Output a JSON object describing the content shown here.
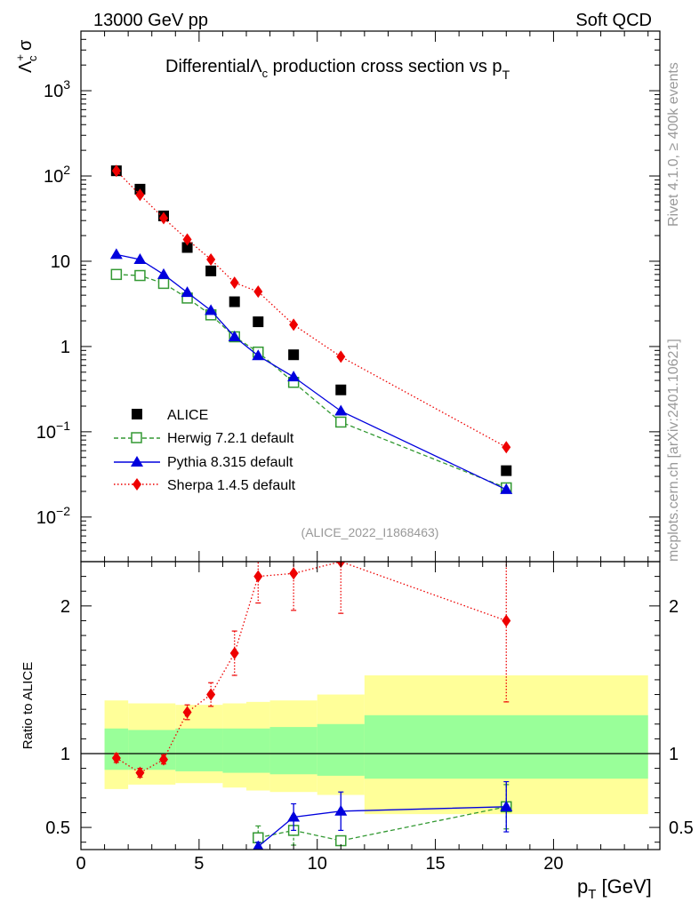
{
  "header": {
    "left": "13000 GeV pp",
    "right": "Soft QCD",
    "side_rivet": "Rivet 4.1.0, ≥ 400k events",
    "side_site": "mcplots.cern.ch [arXiv:2401.10621]",
    "analysis_id": "(ALICE_2022_I1868463)"
  },
  "colors": {
    "alice": "#000000",
    "herwig": "#339933",
    "pythia": "#0000dd",
    "sherpa": "#ee0000",
    "band_inner": "#99ff99",
    "band_outer": "#ffff99"
  },
  "legend": [
    {
      "label": "ALICE",
      "marker": "square-filled",
      "color": "#000000"
    },
    {
      "label": "Herwig 7.2.1 default",
      "marker": "square-open",
      "color": "#339933"
    },
    {
      "label": "Pythia 8.315 default",
      "marker": "triangle",
      "color": "#0000dd"
    },
    {
      "label": "Sherpa 1.4.5 default",
      "marker": "diamond",
      "color": "#ee0000"
    }
  ],
  "chart_data": [
    {
      "type": "scatter",
      "title_prefix": "Differential",
      "title_symbol": "Λ",
      "title_sub": "c",
      "title_suffix": " production cross section vs p",
      "title_suffix_sub": "T",
      "ylabel_symbol": "Λ",
      "ylabel_sup": "+",
      "ylabel_sub": "c",
      "ylabel_suffix": " σ",
      "yscale": "log",
      "xlim": [
        0,
        24.5
      ],
      "ylim": [
        0.003,
        5000
      ],
      "ytick_labels": [
        {
          "value": 0.01,
          "base": "10",
          "exp": "−2"
        },
        {
          "value": 0.1,
          "base": "10",
          "exp": "−1"
        },
        {
          "value": 1,
          "base": "1",
          "exp": ""
        },
        {
          "value": 10,
          "base": "10",
          "exp": ""
        },
        {
          "value": 100,
          "base": "10",
          "exp": "2"
        },
        {
          "value": 1000,
          "base": "10",
          "exp": "3"
        }
      ],
      "series": [
        {
          "name": "ALICE",
          "x": [
            1.5,
            2.5,
            3.5,
            4.5,
            5.5,
            6.5,
            7.5,
            9,
            11,
            18
          ],
          "y": [
            115,
            70,
            34,
            14.5,
            7.7,
            3.35,
            1.95,
            0.8,
            0.31,
            0.035
          ]
        },
        {
          "name": "Herwig 7.2.1 default",
          "x": [
            1.5,
            2.5,
            3.5,
            4.5,
            5.5,
            6.5,
            7.5,
            9,
            11,
            18
          ],
          "y": [
            7.0,
            6.8,
            5.5,
            3.7,
            2.35,
            1.3,
            0.86,
            0.38,
            0.13,
            0.022
          ]
        },
        {
          "name": "Pythia 8.315 default",
          "x": [
            1.5,
            2.5,
            3.5,
            4.5,
            5.5,
            6.5,
            7.5,
            9,
            11,
            18
          ],
          "y": [
            12,
            10.5,
            7.0,
            4.3,
            2.65,
            1.3,
            0.78,
            0.44,
            0.175,
            0.021
          ]
        },
        {
          "name": "Sherpa 1.4.5 default",
          "x": [
            1.5,
            2.5,
            3.5,
            4.5,
            5.5,
            6.5,
            7.5,
            9,
            11,
            18
          ],
          "y": [
            115,
            60,
            32,
            18,
            10.5,
            5.6,
            4.4,
            1.8,
            0.76,
            0.066
          ]
        }
      ]
    },
    {
      "type": "line",
      "ylabel": "Ratio to ALICE",
      "xlabel_main": "p",
      "xlabel_sub": "T",
      "xlabel_unit": " [GeV]",
      "xlim": [
        0,
        24.5
      ],
      "ylim": [
        0.35,
        2.3
      ],
      "xticks": [
        0,
        5,
        10,
        15,
        20
      ],
      "yticks": [
        0.5,
        1,
        2
      ],
      "band_bins": [
        {
          "x": [
            1,
            2
          ],
          "inner": [
            0.89,
            1.17
          ],
          "outer": [
            0.76,
            1.36
          ]
        },
        {
          "x": [
            2,
            4
          ],
          "inner": [
            0.89,
            1.16
          ],
          "outer": [
            0.79,
            1.34
          ]
        },
        {
          "x": [
            4,
            6
          ],
          "inner": [
            0.88,
            1.17
          ],
          "outer": [
            0.8,
            1.33
          ]
        },
        {
          "x": [
            6,
            7
          ],
          "inner": [
            0.87,
            1.17
          ],
          "outer": [
            0.77,
            1.34
          ]
        },
        {
          "x": [
            7,
            8
          ],
          "inner": [
            0.87,
            1.17
          ],
          "outer": [
            0.75,
            1.35
          ]
        },
        {
          "x": [
            8,
            10
          ],
          "inner": [
            0.86,
            1.18
          ],
          "outer": [
            0.74,
            1.36
          ]
        },
        {
          "x": [
            10,
            12
          ],
          "inner": [
            0.85,
            1.2
          ],
          "outer": [
            0.72,
            1.4
          ]
        },
        {
          "x": [
            12,
            24
          ],
          "inner": [
            0.83,
            1.26
          ],
          "outer": [
            0.59,
            1.53
          ]
        }
      ],
      "series": [
        {
          "name": "Herwig 7.2.1 default",
          "x": [
            7.5,
            9,
            11,
            18
          ],
          "y": [
            0.43,
            0.48,
            0.41,
            0.64
          ],
          "err": [
            0.08,
            0.1,
            0.03,
            0.15
          ]
        },
        {
          "name": "Pythia 8.315 default",
          "x": [
            7.5,
            9,
            11,
            18
          ],
          "y": [
            0.37,
            0.57,
            0.61,
            0.64
          ],
          "err": [
            0.03,
            0.09,
            0.13,
            0.17
          ]
        },
        {
          "name": "Sherpa 1.4.5 default",
          "x": [
            1.5,
            2.5,
            3.5,
            4.5,
            5.5,
            6.5,
            7.5,
            9,
            11,
            18
          ],
          "y": [
            0.97,
            0.87,
            0.96,
            1.28,
            1.4,
            1.68,
            2.2,
            2.22,
            2.3,
            1.9
          ],
          "err": [
            0.03,
            0.03,
            0.03,
            0.05,
            0.08,
            0.15,
            0.18,
            0.25,
            0.35,
            0.55
          ]
        }
      ]
    }
  ]
}
